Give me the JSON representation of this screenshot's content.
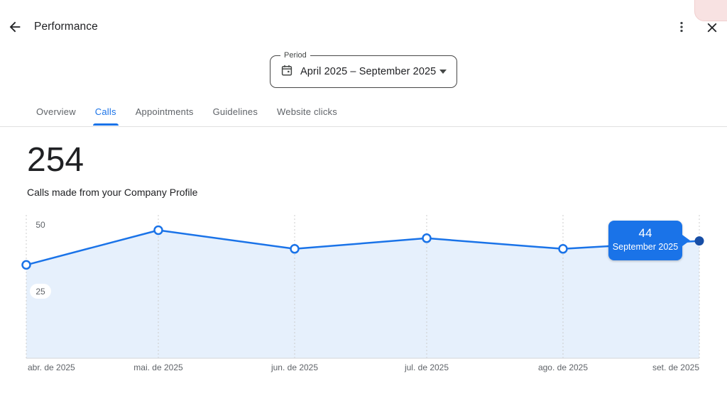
{
  "header": {
    "title": "Performance",
    "back_icon": "arrow-left",
    "more_icon": "kebab-menu",
    "close_icon": "close-x"
  },
  "period": {
    "label": "Period",
    "value": "April 2025 – September 2025",
    "calendar_icon": "calendar",
    "dropdown_icon": "caret-down"
  },
  "tabs": {
    "items": [
      {
        "label": "Overview",
        "active": false
      },
      {
        "label": "Calls",
        "active": true
      },
      {
        "label": "Appointments",
        "active": false
      },
      {
        "label": "Guidelines",
        "active": false
      },
      {
        "label": "Website clicks",
        "active": false
      }
    ]
  },
  "metric": {
    "value": "254",
    "description": "Calls made from your Company Profile"
  },
  "chart_data": {
    "type": "line",
    "title": "Calls made from your Company Profile",
    "categories": [
      "abr. de 2025",
      "mai. de 2025",
      "jun. de 2025",
      "jul. de 2025",
      "ago. de 2025",
      "set. de 2025"
    ],
    "values": [
      35,
      48,
      41,
      45,
      41,
      44
    ],
    "total": 254,
    "y_ticks": [
      25,
      50
    ],
    "ylim": [
      0,
      55
    ],
    "grid": "vertical-dotted",
    "legend": "none",
    "area_fill": true,
    "tooltip": {
      "value": "44",
      "label": "September 2025"
    },
    "colors": {
      "line": "#1a73e8",
      "fill": "rgba(26,115,232,0.11)",
      "active_dot": "#174ea6",
      "tooltip_bg": "#1a73e8",
      "gridline": "#cccccc",
      "axis": "#dadce0",
      "tick_text": "#5f6368"
    }
  },
  "colors": {
    "accent": "#1a73e8",
    "text_primary": "#202124",
    "text_secondary": "#5f6368",
    "divider": "#e0e0e0"
  }
}
